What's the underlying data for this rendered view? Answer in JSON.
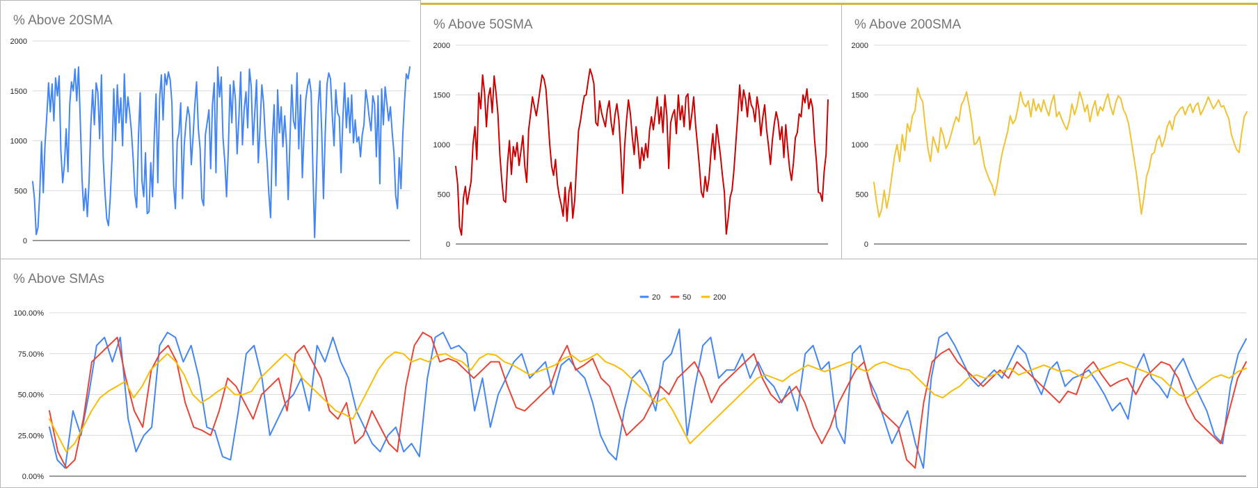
{
  "chart_data": [
    {
      "type": "line",
      "title": "% Above 20SMA",
      "ylim": [
        0,
        2000
      ],
      "yticks": [
        "0",
        "500",
        "1000",
        "1500",
        "2000"
      ],
      "grid": true,
      "legend": "none",
      "color": "#4285f4",
      "series": [
        {
          "values": [
            590,
            420,
            60,
            130,
            470,
            990,
            480,
            960,
            1250,
            1580,
            1290,
            1570,
            1200,
            1630,
            1450,
            1650,
            900,
            580,
            760,
            1120,
            690,
            1360,
            1590,
            1500,
            1720,
            1400,
            1740,
            1200,
            620,
            300,
            520,
            240,
            590,
            1160,
            1510,
            1160,
            1580,
            1480,
            1020,
            1660,
            830,
            490,
            220,
            150,
            420,
            830,
            1520,
            1000,
            1560,
            1180,
            1430,
            950,
            1670,
            1180,
            1440,
            1290,
            1100,
            820,
            460,
            330,
            1040,
            1480,
            600,
            440,
            880,
            270,
            290,
            780,
            440,
            1050,
            1470,
            580,
            1420,
            1660,
            1210,
            1670,
            1560,
            1690,
            1610,
            1380,
            550,
            320,
            1000,
            1080,
            1380,
            420,
            960,
            1180,
            1340,
            1240,
            760,
            1040,
            1360,
            1590,
            1120,
            920,
            420,
            350,
            1060,
            1180,
            1310,
            720,
            1360,
            1580,
            680,
            1740,
            1440,
            1640,
            1030,
            790,
            440,
            900,
            1560,
            1180,
            1600,
            1420,
            870,
            1220,
            1690,
            960,
            1310,
            1490,
            1130,
            1720,
            1540,
            960,
            1270,
            1610,
            780,
            1130,
            1560,
            1380,
            1040,
            790,
            470,
            230,
            1010,
            1360,
            550,
            1510,
            1080,
            1340,
            940,
            1250,
            970,
            410,
            1020,
            1560,
            1200,
            1120,
            1680,
            920,
            1460,
            630,
            1070,
            1420,
            1550,
            1620,
            1480,
            710,
            30,
            640,
            1340,
            1600,
            1080,
            420,
            1070,
            1570,
            1680,
            1620,
            1250,
            950,
            1510,
            1280,
            1240,
            680,
            1230,
            1580,
            1130,
            1430,
            1080,
            1460,
            980,
            1210,
            990,
            1040,
            840,
            1060,
            1160,
            1510,
            1390,
            1230,
            1100,
            1450,
            1370,
            840,
            1450,
            570,
            1520,
            1160,
            1540,
            1370,
            1200,
            1340,
            1080,
            880,
            450,
            320,
            830,
            520,
            1060,
            1400,
            1670,
            1620,
            1740
          ]
        }
      ]
    },
    {
      "type": "line",
      "title": "% Above 50SMA",
      "ylim": [
        0,
        2000
      ],
      "yticks": [
        "0",
        "500",
        "1000",
        "1500",
        "2000"
      ],
      "grid": true,
      "legend": "none",
      "color": "#cc0000",
      "series": [
        {
          "values": [
            780,
            600,
            170,
            90,
            460,
            580,
            400,
            520,
            630,
            1000,
            1180,
            850,
            1520,
            1360,
            1700,
            1520,
            1180,
            1480,
            1570,
            1320,
            1690,
            1520,
            1300,
            900,
            640,
            440,
            420,
            820,
            1040,
            700,
            980,
            880,
            1020,
            790,
            940,
            1090,
            780,
            620,
            1150,
            1310,
            1480,
            1380,
            1290,
            1420,
            1560,
            1700,
            1660,
            1560,
            1290,
            1000,
            780,
            690,
            850,
            600,
            480,
            390,
            280,
            570,
            230,
            520,
            620,
            260,
            440,
            800,
            1140,
            1240,
            1380,
            1490,
            1500,
            1640,
            1760,
            1700,
            1610,
            1220,
            1190,
            1440,
            1320,
            1250,
            1180,
            1350,
            1440,
            1220,
            1100,
            1300,
            1410,
            1250,
            920,
            510,
            980,
            1240,
            1450,
            1310,
            1080,
            900,
            1180,
            1000,
            760,
            970,
            840,
            1010,
            870,
            1140,
            1280,
            1150,
            1310,
            1480,
            1210,
            1380,
            1120,
            1500,
            1290,
            760,
            1220,
            1300,
            1350,
            1110,
            1500,
            1250,
            1390,
            1180,
            1480,
            1510,
            1150,
            1300,
            1480,
            1200,
            990,
            780,
            520,
            470,
            680,
            530,
            660,
            920,
            1110,
            850,
            1200,
            1040,
            880,
            690,
            520,
            100,
            260,
            470,
            540,
            750,
            1020,
            1300,
            1600,
            1340,
            1550,
            1460,
            1280,
            1520,
            1400,
            1360,
            1230,
            1480,
            1350,
            1090,
            1270,
            1400,
            1150,
            990,
            800,
            1040,
            1210,
            1330,
            1240,
            1050,
            1180,
            870,
            1200,
            960,
            760,
            640,
            820,
            1070,
            1120,
            1310,
            1280,
            1500,
            1420,
            1560,
            1360,
            1460,
            1370,
            1050,
            820,
            520,
            510,
            430,
            730,
            900,
            1450
          ]
        }
      ]
    },
    {
      "type": "line",
      "title": "% Above 200SMA",
      "ylim": [
        0,
        2000
      ],
      "yticks": [
        "0",
        "500",
        "1000",
        "1500",
        "2000"
      ],
      "grid": true,
      "legend": "none",
      "color": "#f1c232",
      "series": [
        {
          "values": [
            620,
            430,
            270,
            350,
            540,
            360,
            500,
            690,
            880,
            1000,
            830,
            1100,
            940,
            1210,
            1130,
            1290,
            1340,
            1570,
            1480,
            1430,
            1180,
            960,
            830,
            1080,
            1000,
            920,
            1170,
            1090,
            960,
            1010,
            1100,
            1200,
            1280,
            1230,
            1400,
            1450,
            1530,
            1390,
            1230,
            1000,
            1020,
            1080,
            930,
            780,
            710,
            640,
            590,
            490,
            610,
            790,
            930,
            1030,
            1130,
            1290,
            1210,
            1250,
            1370,
            1530,
            1420,
            1380,
            1440,
            1280,
            1460,
            1340,
            1410,
            1330,
            1450,
            1360,
            1290,
            1420,
            1500,
            1280,
            1330,
            1260,
            1200,
            1150,
            1240,
            1410,
            1300,
            1390,
            1530,
            1450,
            1330,
            1400,
            1230,
            1360,
            1440,
            1290,
            1380,
            1340,
            1440,
            1510,
            1380,
            1300,
            1420,
            1490,
            1460,
            1350,
            1300,
            1210,
            1050,
            880,
            720,
            520,
            300,
            470,
            680,
            760,
            900,
            920,
            1040,
            1090,
            980,
            1050,
            1180,
            1240,
            1150,
            1280,
            1320,
            1360,
            1380,
            1300,
            1370,
            1410,
            1320,
            1390,
            1420,
            1300,
            1350,
            1410,
            1480,
            1420,
            1360,
            1400,
            1450,
            1380,
            1390,
            1320,
            1260,
            1100,
            1020,
            950,
            920,
            1120,
            1280,
            1330
          ]
        }
      ]
    },
    {
      "type": "line",
      "title": "% Above SMAs",
      "ylim": [
        0,
        100
      ],
      "yticks": [
        "0.00%",
        "25.00%",
        "50.00%",
        "75.00%",
        "100.00%"
      ],
      "grid": true,
      "legend": "top",
      "series": [
        {
          "name": "20",
          "color": "#4285f4",
          "values": [
            30,
            10,
            5,
            40,
            25,
            50,
            80,
            85,
            70,
            85,
            35,
            15,
            25,
            30,
            80,
            88,
            85,
            70,
            80,
            60,
            30,
            28,
            12,
            10,
            40,
            75,
            80,
            60,
            25,
            35,
            45,
            50,
            60,
            40,
            80,
            70,
            85,
            70,
            60,
            40,
            30,
            20,
            15,
            25,
            30,
            15,
            20,
            12,
            60,
            85,
            88,
            78,
            80,
            75,
            40,
            60,
            30,
            50,
            60,
            70,
            75,
            60,
            65,
            70,
            50,
            68,
            72,
            65,
            60,
            45,
            25,
            15,
            10,
            40,
            60,
            65,
            55,
            40,
            70,
            75,
            90,
            25,
            55,
            80,
            85,
            60,
            65,
            65,
            75,
            60,
            70,
            60,
            55,
            45,
            55,
            40,
            75,
            80,
            65,
            70,
            30,
            20,
            75,
            80,
            60,
            50,
            35,
            20,
            30,
            40,
            20,
            5,
            60,
            85,
            88,
            80,
            70,
            60,
            55,
            60,
            65,
            60,
            70,
            80,
            75,
            60,
            50,
            65,
            70,
            55,
            60,
            62,
            65,
            58,
            50,
            40,
            45,
            35,
            65,
            75,
            60,
            55,
            48,
            65,
            72,
            60,
            50,
            40,
            25,
            20,
            55,
            75,
            84
          ]
        },
        {
          "name": "50",
          "color": "#ea4335",
          "values": [
            40,
            15,
            5,
            10,
            35,
            70,
            75,
            80,
            85,
            60,
            40,
            30,
            65,
            75,
            80,
            70,
            45,
            30,
            28,
            25,
            40,
            60,
            55,
            45,
            35,
            50,
            55,
            60,
            40,
            75,
            80,
            70,
            60,
            40,
            35,
            45,
            20,
            25,
            40,
            30,
            20,
            15,
            55,
            80,
            88,
            85,
            70,
            72,
            70,
            65,
            60,
            65,
            70,
            70,
            55,
            42,
            40,
            45,
            50,
            55,
            70,
            80,
            65,
            68,
            72,
            60,
            55,
            40,
            25,
            30,
            35,
            45,
            55,
            50,
            60,
            65,
            70,
            60,
            45,
            55,
            60,
            65,
            70,
            75,
            60,
            50,
            45,
            50,
            55,
            45,
            30,
            20,
            30,
            45,
            55,
            65,
            70,
            50,
            40,
            35,
            30,
            10,
            5,
            45,
            70,
            75,
            78,
            70,
            65,
            60,
            55,
            60,
            65,
            60,
            70,
            65,
            60,
            55,
            50,
            45,
            52,
            50,
            65,
            70,
            62,
            55,
            58,
            60,
            50,
            60,
            65,
            70,
            68,
            60,
            45,
            35,
            30,
            25,
            20,
            40,
            60,
            70
          ]
        },
        {
          "name": "200",
          "color": "#fbbc04",
          "values": [
            35,
            25,
            15,
            20,
            30,
            40,
            48,
            52,
            55,
            58,
            48,
            55,
            65,
            70,
            75,
            70,
            62,
            50,
            45,
            48,
            52,
            55,
            50,
            50,
            52,
            60,
            65,
            70,
            75,
            70,
            60,
            55,
            50,
            45,
            40,
            38,
            35,
            45,
            55,
            65,
            72,
            76,
            75,
            70,
            72,
            70,
            74,
            75,
            72,
            70,
            65,
            72,
            75,
            74,
            70,
            68,
            65,
            62,
            64,
            66,
            68,
            72,
            74,
            70,
            72,
            75,
            70,
            68,
            65,
            60,
            55,
            50,
            45,
            48,
            40,
            30,
            20,
            25,
            30,
            35,
            40,
            45,
            50,
            55,
            60,
            62,
            60,
            58,
            62,
            65,
            68,
            66,
            64,
            66,
            68,
            70,
            66,
            64,
            68,
            70,
            68,
            66,
            65,
            60,
            55,
            50,
            48,
            52,
            55,
            60,
            62,
            60,
            62,
            64,
            66,
            62,
            64,
            66,
            68,
            66,
            64,
            65,
            62,
            60,
            64,
            66,
            68,
            70,
            68,
            66,
            64,
            62,
            60,
            55,
            50,
            48,
            52,
            56,
            60,
            62,
            60,
            64,
            66
          ]
        }
      ]
    }
  ]
}
